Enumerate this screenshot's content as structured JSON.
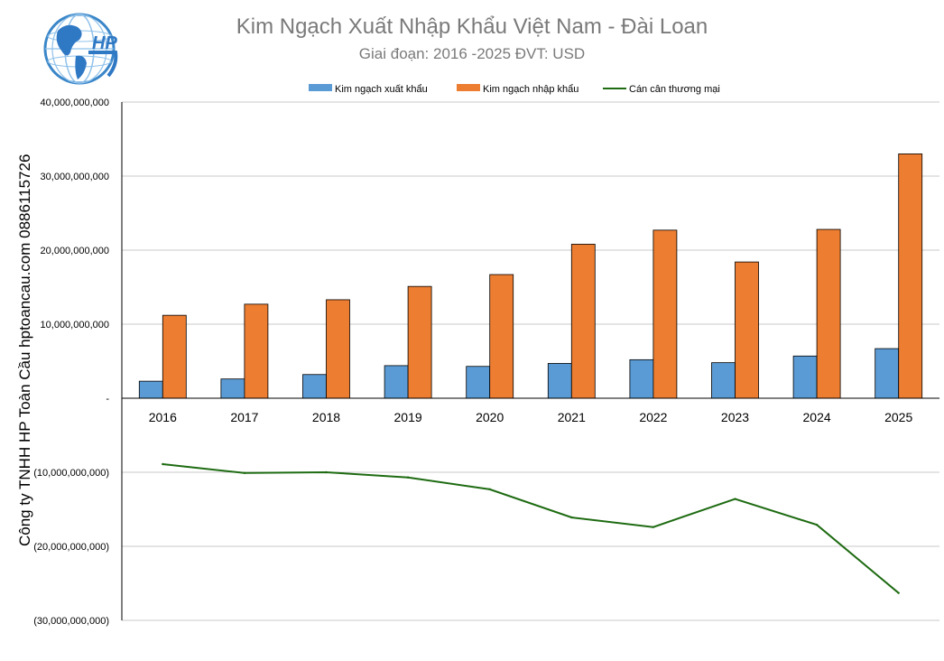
{
  "header": {
    "title": "Kim Ngạch Xuất Nhập Khẩu Việt Nam - Đài Loan",
    "subtitle": "Giai đoạn: 2016 -2025  ĐVT: USD",
    "logo_text": "HP"
  },
  "side_label": "Công ty TNHH HP Toàn Cầu hptoancau.com 0886115726",
  "colors": {
    "export": "#5b9bd5",
    "import": "#ed7d31",
    "balance": "#1e6b12"
  },
  "chart_data": {
    "type": "bar",
    "title": "Kim Ngạch Xuất Nhập Khẩu Việt Nam - Đài Loan",
    "categories": [
      "2016",
      "2017",
      "2018",
      "2019",
      "2020",
      "2021",
      "2022",
      "2023",
      "2024",
      "2025"
    ],
    "series": [
      {
        "name": "Kim ngạch xuất khẩu",
        "type": "bar",
        "values": [
          2300000000,
          2600000000,
          3200000000,
          4400000000,
          4300000000,
          4700000000,
          5200000000,
          4800000000,
          5700000000,
          6700000000
        ]
      },
      {
        "name": "Kim ngạch nhập khẩu",
        "type": "bar",
        "values": [
          11200000000,
          12700000000,
          13300000000,
          15100000000,
          16700000000,
          20800000000,
          22700000000,
          18400000000,
          22800000000,
          33000000000
        ]
      },
      {
        "name": "Cán cân thương mại",
        "type": "line",
        "values": [
          -8900000000,
          -10100000000,
          -10000000000,
          -10700000000,
          -12300000000,
          -16100000000,
          -17400000000,
          -13600000000,
          -17100000000,
          -26300000000
        ]
      }
    ],
    "ylim": [
      -30000000000,
      40000000000
    ],
    "yticks": [
      {
        "value": 40000000000,
        "label": "40,000,000,000"
      },
      {
        "value": 30000000000,
        "label": "30,000,000,000"
      },
      {
        "value": 20000000000,
        "label": "20,000,000,000"
      },
      {
        "value": 10000000000,
        "label": "10,000,000,000"
      },
      {
        "value": 0,
        "label": "-"
      },
      {
        "value": -10000000000,
        "label": "(10,000,000,000)"
      },
      {
        "value": -20000000000,
        "label": "(20,000,000,000)"
      },
      {
        "value": -30000000000,
        "label": "(30,000,000,000)"
      }
    ],
    "grid": true,
    "legend": "top"
  }
}
